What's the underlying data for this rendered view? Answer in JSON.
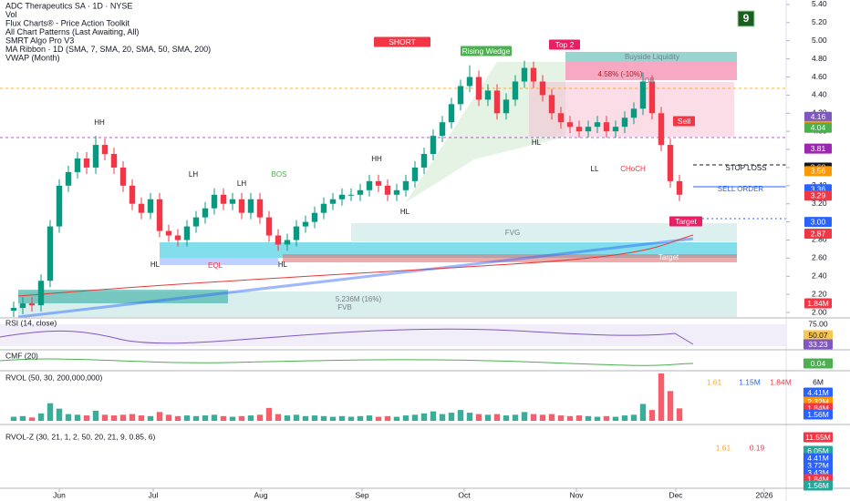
{
  "chart_data": {
    "type": "candlestick",
    "header": [
      "ADC Therapeutics SA · 1D · NYSE",
      "Vol",
      "Flux Charts® - Price Action Toolkit",
      "All Chart Patterns (Last Awaiting, All)",
      "SMRT Algo Pro V3",
      "MA Ribbon · 1D (SMA, 7, SMA, 20, SMA, 50, SMA, 200)",
      "VWAP (Month)"
    ],
    "signal_count": "9",
    "candles": [
      [
        2.02,
        2.12,
        1.95,
        2.05
      ],
      [
        2.05,
        2.17,
        1.98,
        2.1
      ],
      [
        2.1,
        2.17,
        2.01,
        2.08
      ],
      [
        2.08,
        2.42,
        2.01,
        2.35
      ],
      [
        2.35,
        3.02,
        2.28,
        2.95
      ],
      [
        2.95,
        3.47,
        2.88,
        3.4
      ],
      [
        3.4,
        3.62,
        3.33,
        3.55
      ],
      [
        3.55,
        3.77,
        3.48,
        3.7
      ],
      [
        3.7,
        3.77,
        3.53,
        3.6
      ],
      [
        3.6,
        3.95,
        3.53,
        3.85
      ],
      [
        3.85,
        3.92,
        3.68,
        3.75
      ],
      [
        3.75,
        3.82,
        3.53,
        3.6
      ],
      [
        3.6,
        3.67,
        3.33,
        3.4
      ],
      [
        3.4,
        3.47,
        3.13,
        3.2
      ],
      [
        3.2,
        3.27,
        3.03,
        3.1
      ],
      [
        3.1,
        3.32,
        3.03,
        3.25
      ],
      [
        3.25,
        3.32,
        2.83,
        2.9
      ],
      [
        2.9,
        2.97,
        2.78,
        2.85
      ],
      [
        2.85,
        2.92,
        2.73,
        2.8
      ],
      [
        2.8,
        3.02,
        2.73,
        2.95
      ],
      [
        2.95,
        3.12,
        2.88,
        3.05
      ],
      [
        3.05,
        3.22,
        2.98,
        3.15
      ],
      [
        3.15,
        3.37,
        3.08,
        3.3
      ],
      [
        3.3,
        3.37,
        3.13,
        3.2
      ],
      [
        3.2,
        3.32,
        3.13,
        3.25
      ],
      [
        3.25,
        3.32,
        3.03,
        3.1
      ],
      [
        3.1,
        3.32,
        3.03,
        3.25
      ],
      [
        3.25,
        3.32,
        2.98,
        3.05
      ],
      [
        3.05,
        3.12,
        2.78,
        2.85
      ],
      [
        2.85,
        2.92,
        2.68,
        2.75
      ],
      [
        2.75,
        2.87,
        2.68,
        2.8
      ],
      [
        2.8,
        3.02,
        2.73,
        2.95
      ],
      [
        2.95,
        3.07,
        2.88,
        3.0
      ],
      [
        3.0,
        3.17,
        2.93,
        3.1
      ],
      [
        3.1,
        3.27,
        3.03,
        3.2
      ],
      [
        3.2,
        3.32,
        3.13,
        3.25
      ],
      [
        3.25,
        3.37,
        3.18,
        3.3
      ],
      [
        3.3,
        3.37,
        3.23,
        3.3
      ],
      [
        3.3,
        3.42,
        3.23,
        3.35
      ],
      [
        3.35,
        3.52,
        3.28,
        3.45
      ],
      [
        3.45,
        3.52,
        3.33,
        3.4
      ],
      [
        3.4,
        3.47,
        3.23,
        3.3
      ],
      [
        3.3,
        3.42,
        3.23,
        3.35
      ],
      [
        3.35,
        3.52,
        3.28,
        3.45
      ],
      [
        3.45,
        3.67,
        3.38,
        3.6
      ],
      [
        3.6,
        3.82,
        3.53,
        3.75
      ],
      [
        3.75,
        4.02,
        3.68,
        3.95
      ],
      [
        3.95,
        4.17,
        3.88,
        4.1
      ],
      [
        4.1,
        4.37,
        4.03,
        4.3
      ],
      [
        4.3,
        4.57,
        4.23,
        4.5
      ],
      [
        4.5,
        4.73,
        4.43,
        4.6
      ],
      [
        4.6,
        4.67,
        4.28,
        4.35
      ],
      [
        4.35,
        4.52,
        4.28,
        4.45
      ],
      [
        4.45,
        4.52,
        4.13,
        4.2
      ],
      [
        4.2,
        4.42,
        4.13,
        4.35
      ],
      [
        4.35,
        4.62,
        4.28,
        4.55
      ],
      [
        4.55,
        4.78,
        4.48,
        4.7
      ],
      [
        4.7,
        4.77,
        4.48,
        4.55
      ],
      [
        4.55,
        4.62,
        4.33,
        4.4
      ],
      [
        4.4,
        4.47,
        4.13,
        4.2
      ],
      [
        4.2,
        4.27,
        4.03,
        4.1
      ],
      [
        4.1,
        4.17,
        3.98,
        4.05
      ],
      [
        4.05,
        4.12,
        3.93,
        4.0
      ],
      [
        4.0,
        4.12,
        3.93,
        4.05
      ],
      [
        4.05,
        4.17,
        3.98,
        4.1
      ],
      [
        4.1,
        4.17,
        3.93,
        4.0
      ],
      [
        4.0,
        4.12,
        3.93,
        4.05
      ],
      [
        4.05,
        4.22,
        3.98,
        4.15
      ],
      [
        4.15,
        4.32,
        4.08,
        4.25
      ],
      [
        4.25,
        4.65,
        4.18,
        4.55
      ],
      [
        4.55,
        4.62,
        4.13,
        4.2
      ],
      [
        4.2,
        4.27,
        3.78,
        3.85
      ],
      [
        3.85,
        3.92,
        3.38,
        3.45
      ],
      [
        3.45,
        3.52,
        3.23,
        3.3
      ]
    ],
    "volume": [
      0.6,
      0.7,
      0.5,
      1.1,
      2.6,
      1.8,
      1.0,
      0.9,
      0.8,
      1.5,
      0.9,
      0.8,
      0.9,
      1.0,
      0.8,
      0.7,
      1.3,
      0.9,
      0.7,
      0.8,
      0.7,
      0.8,
      0.9,
      0.7,
      0.6,
      0.7,
      0.8,
      0.9,
      1.9,
      1.0,
      0.8,
      0.9,
      0.7,
      0.8,
      0.7,
      0.6,
      0.7,
      0.6,
      0.7,
      0.8,
      0.6,
      0.7,
      0.6,
      0.8,
      0.9,
      1.1,
      1.4,
      1.0,
      1.2,
      1.6,
      1.2,
      1.0,
      0.9,
      1.0,
      0.8,
      0.9,
      1.3,
      1.0,
      0.9,
      1.0,
      0.8,
      0.7,
      0.8,
      0.7,
      0.6,
      0.7,
      0.6,
      0.8,
      0.9,
      2.5,
      1.6,
      7.0,
      4.4,
      1.84
    ],
    "up_color": "#089981",
    "down_color": "#f23645",
    "xlim": [
      -0.5,
      84.7
    ],
    "xticks": [
      {
        "value": 5,
        "label": "Jun"
      },
      {
        "value": 15.3,
        "label": "Jul"
      },
      {
        "value": 27.1,
        "label": "Aug"
      },
      {
        "value": 38.2,
        "label": "Sep"
      },
      {
        "value": 49.4,
        "label": "Oct"
      },
      {
        "value": 61.7,
        "label": "Nov"
      },
      {
        "value": 72.6,
        "label": "Dec"
      },
      {
        "value": 82.3,
        "label": "2026"
      }
    ],
    "ylim": [
      1.95,
      5.45
    ],
    "yticks": [
      {
        "value": 2.0,
        "label": "2.00"
      },
      {
        "value": 2.2,
        "label": "2.20"
      },
      {
        "value": 2.4,
        "label": "2.40"
      },
      {
        "value": 2.6,
        "label": "2.60"
      },
      {
        "value": 2.8,
        "label": "2.80"
      },
      {
        "value": 3.0,
        "label": "3.00"
      },
      {
        "value": 3.2,
        "label": "3.20"
      },
      {
        "value": 3.4,
        "label": "3.40"
      },
      {
        "value": 3.6,
        "label": "3.60"
      },
      {
        "value": 3.8,
        "label": "3.80"
      },
      {
        "value": 4.0,
        "label": "4.00"
      },
      {
        "value": 4.2,
        "label": "4.20"
      },
      {
        "value": 4.4,
        "label": "4.40"
      },
      {
        "value": 4.6,
        "label": "4.60"
      },
      {
        "value": 4.8,
        "label": "4.80"
      },
      {
        "value": 5.0,
        "label": "5.00"
      },
      {
        "value": 5.2,
        "label": "5.20"
      },
      {
        "value": 5.4,
        "label": "5.40"
      }
    ],
    "price_badges": [
      {
        "value": 4.16,
        "label": "4.16",
        "color": "#7e57c2"
      },
      {
        "value": 4.06,
        "label": "4.06",
        "color": "#2962ff"
      },
      {
        "value": 4.06,
        "label": "4.06",
        "color": "#ff9800"
      },
      {
        "value": 4.04,
        "label": "4.04",
        "color": "#4caf50"
      },
      {
        "value": 3.81,
        "label": "3.81",
        "color": "#9c27b0"
      },
      {
        "value": 3.6,
        "label": "3.60",
        "color": "#131722"
      },
      {
        "value": 3.56,
        "label": "3.56",
        "color": "#ff9800"
      },
      {
        "value": 3.36,
        "label": "3.36",
        "color": "#2962ff"
      },
      {
        "value": 3.29,
        "label": "3.29",
        "color": "#f23645"
      },
      {
        "value": 3.0,
        "label": "3.00",
        "color": "#2962ff"
      },
      {
        "value": 2.87,
        "label": "2.87",
        "color": "#f23645"
      }
    ],
    "volume_badge": "1.84M",
    "annotations": [
      "SHORT",
      "Rising Wedge",
      "Top 2",
      "Buyside Liquidity",
      "4.58% (-10%)",
      "OB",
      "Sell",
      "Target",
      "Target",
      "STOP LOSS",
      "SELL ORDER",
      "FVG",
      "FVB",
      "5.236M (16%)",
      "HH",
      "LH",
      "LH",
      "HH",
      "HL",
      "HL",
      "HL",
      "HL",
      "LL",
      "EQL",
      "BOS",
      "CHoCH"
    ],
    "panels": [
      {
        "title": "RSI (14, close)",
        "labels": [
          "75.00",
          "50.07",
          "33.23"
        ]
      },
      {
        "title": "CMF (20)",
        "labels": [
          "0.04"
        ]
      },
      {
        "title": "RVOL (50, 30, 200,000,000)",
        "labels": [
          "6M",
          "4.41M",
          "2.32M",
          "1.84M",
          "1.56M",
          "1.61",
          "1.15M",
          "1.84M"
        ],
        "vol_ylim": [
          0,
          7
        ]
      },
      {
        "title": "RVOL-Z (30, 21, 1, 2, 50, 20, 21, 9, 0.85, 6)",
        "labels": [
          "11.55M",
          "6.05M",
          "4.41M",
          "3.72M",
          "3.43M",
          "1.84M",
          "1.56M",
          "1.61",
          "0.19"
        ]
      }
    ]
  }
}
